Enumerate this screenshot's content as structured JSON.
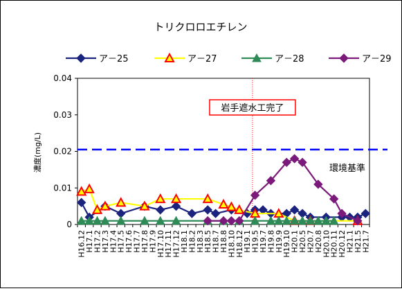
{
  "chart_data": {
    "type": "line",
    "title": "トリクロロエチレン",
    "ylabel": "濃度(mg/L)",
    "xlabel": "",
    "ylim": [
      0,
      0.04
    ],
    "yticks": [
      "0",
      "0.01",
      "0.02",
      "0.03",
      "0.04"
    ],
    "ytick_values": [
      0,
      0.01,
      0.02,
      0.03,
      0.04
    ],
    "grid": false,
    "legend_position": "top",
    "categories": [
      "H16.12",
      "H17.1",
      "H17.2",
      "H17.3",
      "H17.4",
      "H17.5",
      "H17.6",
      "H17.7",
      "H17.8",
      "H17.9",
      "H17.10",
      "H17.11",
      "H17.12",
      "H18.1",
      "H18.2",
      "H18.3",
      "H18.5",
      "H18.7",
      "H18.8",
      "H18.10",
      "H18.12",
      "H19.1",
      "H19.5",
      "H19.7",
      "H19.8",
      "H19.9",
      "H19.10",
      "H20.1",
      "H20.5",
      "H20.7",
      "H20.8",
      "H20.10",
      "H20.11",
      "H20.12",
      "H21.1",
      "H21.5",
      "H21.7"
    ],
    "series": [
      {
        "name": "ア－25",
        "color": "#1a237e",
        "marker": "diamond",
        "points": [
          {
            "x": "H16.12",
            "y": 0.006
          },
          {
            "x": "H17.1",
            "y": 0.002
          },
          {
            "x": "H17.3",
            "y": 0.005
          },
          {
            "x": "H17.5",
            "y": 0.003
          },
          {
            "x": "H17.8",
            "y": 0.005
          },
          {
            "x": "H17.10",
            "y": 0.004
          },
          {
            "x": "H17.12",
            "y": 0.005
          },
          {
            "x": "H18.2",
            "y": 0.003
          },
          {
            "x": "H18.5",
            "y": 0.004
          },
          {
            "x": "H18.7",
            "y": 0.003
          },
          {
            "x": "H18.10",
            "y": 0.004
          },
          {
            "x": "H19.1",
            "y": 0.003
          },
          {
            "x": "H19.5",
            "y": 0.004
          },
          {
            "x": "H19.7",
            "y": 0.004
          },
          {
            "x": "H19.8",
            "y": 0.003
          },
          {
            "x": "H19.10",
            "y": 0.003
          },
          {
            "x": "H20.1",
            "y": 0.004
          },
          {
            "x": "H20.5",
            "y": 0.003
          },
          {
            "x": "H20.7",
            "y": 0.002
          },
          {
            "x": "H20.10",
            "y": 0.002
          },
          {
            "x": "H20.12",
            "y": 0.002
          },
          {
            "x": "H21.1",
            "y": 0.002
          },
          {
            "x": "H21.5",
            "y": 0.002
          },
          {
            "x": "H21.7",
            "y": 0.003
          }
        ]
      },
      {
        "name": "ア－27",
        "color": "#ffff00",
        "marker": "triangle",
        "marker_stroke": "#ff0000",
        "points": [
          {
            "x": "H16.12",
            "y": 0.009
          },
          {
            "x": "H17.1",
            "y": 0.0097
          },
          {
            "x": "H17.2",
            "y": 0.004
          },
          {
            "x": "H17.3",
            "y": 0.005
          },
          {
            "x": "H17.5",
            "y": 0.006
          },
          {
            "x": "H17.8",
            "y": 0.005
          },
          {
            "x": "H17.10",
            "y": 0.007
          },
          {
            "x": "H17.12",
            "y": 0.007
          },
          {
            "x": "H18.5",
            "y": 0.007
          },
          {
            "x": "H18.8",
            "y": 0.0055
          },
          {
            "x": "H18.10",
            "y": 0.0048
          },
          {
            "x": "H18.12",
            "y": 0.004
          },
          {
            "x": "H19.5",
            "y": 0.003
          },
          {
            "x": "H19.9",
            "y": 0.003
          },
          {
            "x": "H20.1",
            "y": 0.001
          },
          {
            "x": "H20.7",
            "y": 0.001
          },
          {
            "x": "H21.5",
            "y": 0.001
          }
        ]
      },
      {
        "name": "ア－28",
        "color": "#2e8b57",
        "marker": "triangle",
        "points": [
          {
            "x": "H16.12",
            "y": 0.001
          },
          {
            "x": "H17.1",
            "y": 0.001
          },
          {
            "x": "H17.2",
            "y": 0.001
          },
          {
            "x": "H17.3",
            "y": 0.001
          },
          {
            "x": "H17.5",
            "y": 0.001
          },
          {
            "x": "H17.8",
            "y": 0.001
          },
          {
            "x": "H17.10",
            "y": 0.001
          },
          {
            "x": "H17.12",
            "y": 0.001
          },
          {
            "x": "H18.5",
            "y": 0.001
          },
          {
            "x": "H18.8",
            "y": 0.001
          },
          {
            "x": "H18.12",
            "y": 0.001
          },
          {
            "x": "H19.5",
            "y": 0.001
          },
          {
            "x": "H19.8",
            "y": 0.001
          },
          {
            "x": "H19.9",
            "y": 0.001
          },
          {
            "x": "H19.10",
            "y": 0.001
          },
          {
            "x": "H20.1",
            "y": 0.001
          },
          {
            "x": "H20.5",
            "y": 0.001
          },
          {
            "x": "H20.7",
            "y": 0.001
          },
          {
            "x": "H20.8",
            "y": 0.001
          },
          {
            "x": "H20.10",
            "y": 0.001
          },
          {
            "x": "H20.11",
            "y": 0.001
          }
        ]
      },
      {
        "name": "ア－29",
        "color": "#7b1a7b",
        "marker": "diamond",
        "points": [
          {
            "x": "H18.5",
            "y": 0.001
          },
          {
            "x": "H18.8",
            "y": 0.001
          },
          {
            "x": "H18.10",
            "y": 0.001
          },
          {
            "x": "H18.12",
            "y": 0.001
          },
          {
            "x": "H19.5",
            "y": 0.008
          },
          {
            "x": "H19.8",
            "y": 0.012
          },
          {
            "x": "H19.10",
            "y": 0.017
          },
          {
            "x": "H20.1",
            "y": 0.018
          },
          {
            "x": "H20.5",
            "y": 0.017
          },
          {
            "x": "H20.8",
            "y": 0.011
          },
          {
            "x": "H20.11",
            "y": 0.007
          },
          {
            "x": "H20.12",
            "y": 0.003
          },
          {
            "x": "H21.5",
            "y": 0.001
          }
        ]
      }
    ],
    "reference_line": {
      "label": "環境基準",
      "value": 0.0205,
      "color": "#0000ff",
      "style": "dashed"
    },
    "event_marker": {
      "label": "岩手遮水工完了",
      "at": "H19.5",
      "color": "#ff0000"
    }
  }
}
